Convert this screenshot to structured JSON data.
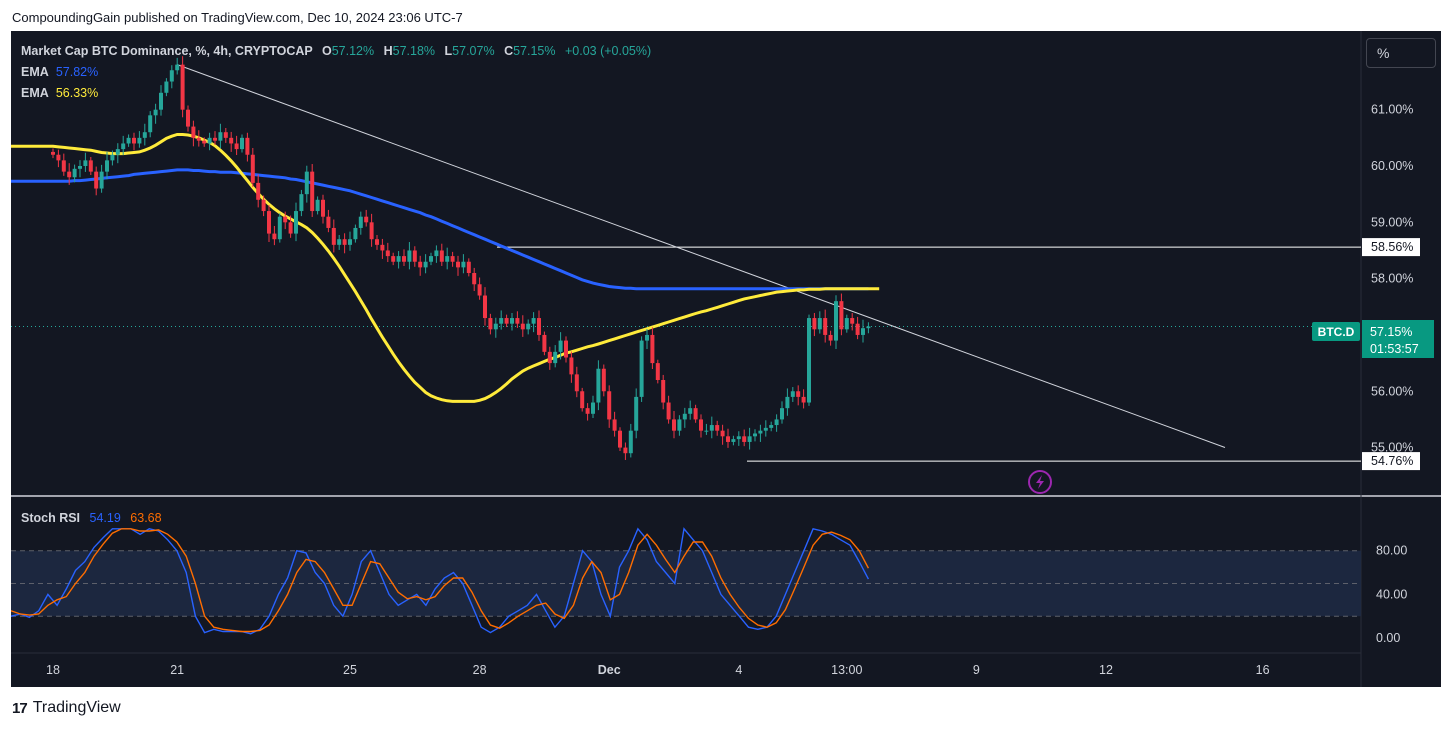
{
  "header": {
    "published": "CompoundingGain published on TradingView.com, Dec 10, 2024 23:06 UTC-7"
  },
  "footer": {
    "logo_text": "TradingView",
    "logo_mark": "17"
  },
  "toolbar": {
    "percent_label": "%"
  },
  "legend": {
    "symbol": "Market Cap BTC Dominance, %, 4h, CRYPTOCAP",
    "o_label": "O",
    "o_value": "57.12%",
    "h_label": "H",
    "h_value": "57.18%",
    "l_label": "L",
    "l_value": "57.07%",
    "c_label": "C",
    "c_value": "57.15%",
    "change": "+0.03 (+0.05%)",
    "ema1_label": "EMA",
    "ema1_value": "57.82%",
    "ema2_label": "EMA",
    "ema2_value": "56.33%"
  },
  "colors": {
    "up": "#26a69a",
    "down": "#f23645",
    "ema_fast": "#ffeb3b",
    "ema_slow": "#2962ff",
    "stoch_k": "#2962ff",
    "stoch_d": "#ff6d00"
  },
  "chart_data": [
    {
      "type": "candlestick",
      "title": "Market Cap BTC Dominance, %, 4h, CRYPTOCAP",
      "ylim": [
        54.3,
        61.9
      ],
      "y_ticks": [
        55,
        56,
        57,
        58,
        59,
        60,
        61
      ],
      "y_tick_labels": [
        "55.00%",
        "56.00%",
        "57.00%",
        "58.00%",
        "59.00%",
        "60.00%",
        "61.00%"
      ],
      "x_ticks": [
        0,
        23,
        55,
        79,
        103,
        127,
        147,
        171,
        195,
        224
      ],
      "x_tick_labels": [
        "18",
        "21",
        "25",
        "28",
        "Dec",
        "4",
        "13:00",
        "9",
        "12",
        "16"
      ],
      "closes": [
        60.2,
        60.1,
        59.9,
        59.8,
        59.95,
        60.0,
        60.1,
        59.9,
        59.6,
        59.9,
        60.1,
        60.2,
        60.3,
        60.4,
        60.5,
        60.4,
        60.5,
        60.6,
        60.9,
        61.0,
        61.3,
        61.5,
        61.7,
        61.8,
        61.0,
        60.7,
        60.5,
        60.45,
        60.4,
        60.5,
        60.45,
        60.6,
        60.5,
        60.4,
        60.3,
        60.5,
        60.2,
        59.7,
        59.4,
        59.2,
        58.8,
        58.7,
        59.1,
        59.0,
        58.8,
        59.2,
        59.5,
        59.9,
        59.2,
        59.4,
        59.1,
        58.9,
        58.6,
        58.7,
        58.6,
        58.7,
        58.9,
        59.1,
        59.0,
        58.7,
        58.6,
        58.5,
        58.4,
        58.3,
        58.4,
        58.3,
        58.5,
        58.3,
        58.2,
        58.3,
        58.4,
        58.5,
        58.3,
        58.4,
        58.3,
        58.2,
        58.3,
        58.1,
        57.9,
        57.7,
        57.3,
        57.1,
        57.2,
        57.3,
        57.2,
        57.3,
        57.2,
        57.1,
        57.2,
        57.3,
        57.0,
        56.7,
        56.5,
        56.7,
        56.9,
        56.6,
        56.3,
        56.0,
        55.7,
        55.6,
        55.8,
        56.4,
        56.0,
        55.5,
        55.3,
        55.0,
        54.9,
        55.3,
        55.9,
        56.9,
        57.0,
        56.5,
        56.2,
        55.8,
        55.5,
        55.3,
        55.5,
        55.6,
        55.7,
        55.5,
        55.3,
        55.3,
        55.4,
        55.3,
        55.2,
        55.1,
        55.15,
        55.2,
        55.1,
        55.2,
        55.25,
        55.3,
        55.35,
        55.4,
        55.5,
        55.7,
        55.9,
        56.0,
        55.9,
        55.8,
        57.3,
        57.1,
        57.3,
        57.0,
        56.9,
        57.6,
        57.1,
        57.3,
        57.2,
        57.0,
        57.12,
        57.15
      ],
      "ema_fast": [
        60.35,
        60.34,
        60.33,
        60.32,
        60.31,
        60.3,
        60.29,
        60.28,
        60.26,
        60.24,
        60.23,
        60.22,
        60.22,
        60.22,
        60.23,
        60.24,
        60.25,
        60.28,
        60.32,
        60.37,
        60.43,
        60.49,
        60.53,
        60.56,
        60.56,
        60.55,
        60.53,
        60.5,
        60.46,
        60.42,
        60.36,
        60.28,
        60.19,
        60.09,
        59.98,
        59.86,
        59.74,
        59.62,
        59.51,
        59.41,
        59.32,
        59.24,
        59.17,
        59.11,
        59.06,
        59.01,
        58.96,
        58.9,
        58.82,
        58.72,
        58.61,
        58.49,
        58.36,
        58.22,
        58.07,
        57.92,
        57.77,
        57.61,
        57.45,
        57.28,
        57.12,
        56.96,
        56.81,
        56.66,
        56.52,
        56.39,
        56.27,
        56.16,
        56.07,
        55.98,
        55.92,
        55.88,
        55.85,
        55.83,
        55.82,
        55.82,
        55.82,
        55.82,
        55.82,
        55.84,
        55.87,
        55.92,
        55.98,
        56.05,
        56.13,
        56.22,
        56.29,
        56.36,
        56.41,
        56.45,
        56.49,
        56.53,
        56.57,
        56.6,
        56.64,
        56.68,
        56.7,
        56.73,
        56.76,
        56.79,
        56.81,
        56.84,
        56.87,
        56.9,
        56.93,
        56.96,
        56.99,
        57.02,
        57.05,
        57.08,
        57.11,
        57.14,
        57.17,
        57.2,
        57.23,
        57.26,
        57.29,
        57.32,
        57.35,
        57.38,
        57.41,
        57.43,
        57.46,
        57.49,
        57.52,
        57.55,
        57.58,
        57.61,
        57.64,
        57.66,
        57.68,
        57.7,
        57.72,
        57.74,
        57.76,
        57.77,
        57.78,
        57.79,
        57.8,
        57.8,
        57.81,
        57.81,
        57.81,
        57.82,
        57.82,
        57.82,
        57.82,
        57.82,
        57.82,
        57.82,
        57.82,
        57.82,
        57.82,
        57.82
      ],
      "ema_slow": [
        59.73,
        59.73,
        59.73,
        59.73,
        59.74,
        59.74,
        59.75,
        59.76,
        59.77,
        59.78,
        59.79,
        59.8,
        59.81,
        59.82,
        59.83,
        59.85,
        59.86,
        59.87,
        59.88,
        59.89,
        59.9,
        59.91,
        59.92,
        59.93,
        59.93,
        59.93,
        59.92,
        59.92,
        59.91,
        59.9,
        59.9,
        59.89,
        59.89,
        59.89,
        59.88,
        59.87,
        59.86,
        59.85,
        59.84,
        59.83,
        59.82,
        59.81,
        59.8,
        59.79,
        59.77,
        59.76,
        59.74,
        59.72,
        59.7,
        59.68,
        59.66,
        59.64,
        59.62,
        59.6,
        59.58,
        59.56,
        59.53,
        59.5,
        59.47,
        59.44,
        59.41,
        59.38,
        59.35,
        59.32,
        59.29,
        59.26,
        59.23,
        59.2,
        59.17,
        59.13,
        59.1,
        59.06,
        59.02,
        58.98,
        58.94,
        58.9,
        58.86,
        58.82,
        58.78,
        58.74,
        58.7,
        58.66,
        58.62,
        58.58,
        58.54,
        58.5,
        58.46,
        58.42,
        58.38,
        58.34,
        58.3,
        58.26,
        58.22,
        58.18,
        58.14,
        58.1,
        58.06,
        58.02,
        57.98,
        57.95,
        57.92,
        57.9,
        57.88,
        57.86,
        57.85,
        57.84,
        57.83,
        57.83,
        57.82,
        57.82,
        57.82,
        57.82,
        57.82,
        57.82,
        57.82,
        57.82,
        57.82,
        57.82,
        57.82,
        57.82,
        57.82,
        57.82,
        57.82,
        57.82,
        57.82,
        57.82,
        57.82,
        57.82,
        57.82,
        57.82,
        57.82,
        57.82,
        57.82,
        57.82,
        57.82,
        57.82,
        57.82,
        57.82,
        57.82,
        57.82,
        57.82,
        57.82,
        57.82,
        57.82,
        57.82,
        57.82,
        57.82,
        57.82,
        57.82,
        57.82,
        57.82,
        57.82
      ],
      "trendline": {
        "start": {
          "x": 23,
          "y": 61.8
        },
        "end": {
          "x": 160,
          "y": 57.0
        }
      },
      "levels": [
        {
          "value": 58.56,
          "label": "58.56%"
        },
        {
          "value": 54.76,
          "label": "54.76%"
        }
      ],
      "last_price": {
        "symbol": "BTC.D",
        "value": "57.15%",
        "countdown": "01:53:57"
      }
    },
    {
      "type": "line",
      "title": "Stoch RSI",
      "k_value": "54.19",
      "d_value": "63.68",
      "ylim": [
        -10,
        120
      ],
      "y_ticks": [
        0,
        40,
        80
      ],
      "y_tick_labels": [
        "0.00",
        "40.00",
        "80.00"
      ],
      "band": [
        20,
        80
      ],
      "k": [
        20,
        22,
        19,
        25,
        40,
        30,
        45,
        62,
        70,
        83,
        92,
        100,
        100,
        100,
        95,
        100,
        98,
        90,
        80,
        60,
        20,
        5,
        8,
        6,
        6,
        6,
        4,
        8,
        20,
        40,
        55,
        80,
        78,
        60,
        50,
        30,
        20,
        40,
        70,
        80,
        60,
        40,
        30,
        35,
        40,
        30,
        45,
        55,
        60,
        50,
        30,
        10,
        5,
        10,
        20,
        25,
        30,
        40,
        25,
        10,
        20,
        50,
        80,
        70,
        40,
        20,
        65,
        80,
        100,
        90,
        70,
        60,
        50,
        100,
        90,
        80,
        60,
        40,
        30,
        20,
        10,
        8,
        10,
        20,
        40,
        60,
        80,
        100,
        98,
        95,
        90,
        85,
        70,
        54
      ],
      "d": [
        25,
        22,
        21,
        22,
        30,
        35,
        38,
        50,
        60,
        75,
        86,
        96,
        100,
        100,
        98,
        98,
        99,
        95,
        88,
        75,
        50,
        20,
        10,
        8,
        7,
        6,
        6,
        7,
        12,
        25,
        40,
        60,
        72,
        70,
        60,
        45,
        30,
        30,
        50,
        70,
        68,
        55,
        42,
        36,
        38,
        35,
        38,
        48,
        55,
        55,
        42,
        25,
        12,
        9,
        14,
        20,
        25,
        30,
        32,
        22,
        18,
        30,
        55,
        70,
        60,
        35,
        40,
        60,
        85,
        95,
        85,
        72,
        60,
        75,
        88,
        88,
        75,
        55,
        40,
        28,
        18,
        12,
        10,
        14,
        26,
        45,
        65,
        85,
        95,
        97,
        94,
        90,
        80,
        64
      ]
    }
  ]
}
